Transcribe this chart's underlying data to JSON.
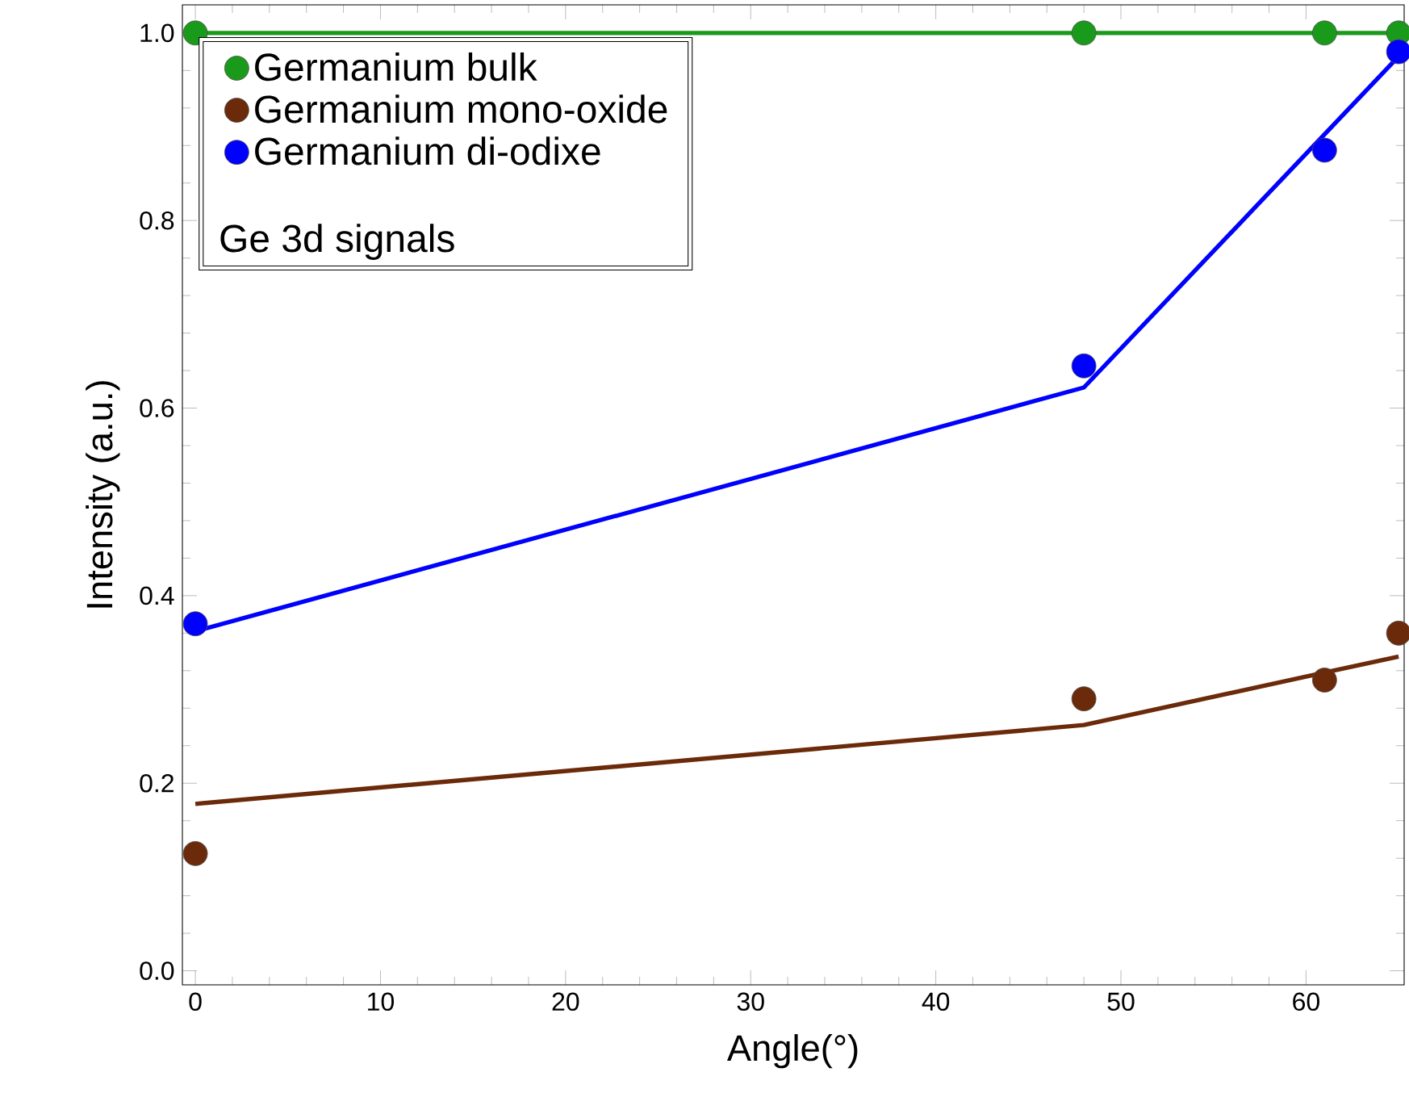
{
  "chart_data": {
    "type": "scatter",
    "xlabel": "Angle(°)",
    "ylabel": "Intensity (a.u.)",
    "annotations": [
      "Ge 3d signals"
    ],
    "xlim": [
      -0.7,
      65.3
    ],
    "ylim": [
      -0.015,
      1.03
    ],
    "xticks": [
      0,
      10,
      20,
      30,
      40,
      50,
      60
    ],
    "yticks": [
      {
        "value": 0,
        "label": "0.0"
      },
      {
        "value": 0.2,
        "label": "0.2"
      },
      {
        "value": 0.4,
        "label": "0.4"
      },
      {
        "value": 0.6,
        "label": "0.6"
      },
      {
        "value": 0.8,
        "label": "0.8"
      },
      {
        "value": 1,
        "label": "1.0"
      }
    ],
    "grid": false,
    "legend": "top left",
    "x": [
      0,
      48,
      61,
      65
    ],
    "series": [
      {
        "name": "Germanium bulk",
        "marker": "circle",
        "color": "#1a9a1a",
        "values": [
          1,
          1,
          1,
          1
        ]
      },
      {
        "name": "Germanium mono-oxide",
        "marker": "circle",
        "color": "#6b2a0a",
        "values": [
          0.125,
          0.29,
          0.31,
          0.36
        ]
      },
      {
        "name": "Germanium di-odixe",
        "marker": "circle",
        "color": "#0000ff",
        "values": [
          0.37,
          0.645,
          0.875,
          0.98
        ]
      },
      {
        "type": "line",
        "marker": "none",
        "color": "#1a9a1a",
        "values": [
          1,
          1,
          1,
          1
        ]
      },
      {
        "type": "line",
        "marker": "none",
        "color": "#6b2a0a",
        "values": [
          0.178,
          0.262,
          0.318,
          0.335
        ]
      },
      {
        "type": "line",
        "marker": "none",
        "color": "#0000ff",
        "values": [
          0.362,
          0.622,
          0.892,
          0.975
        ]
      }
    ]
  }
}
